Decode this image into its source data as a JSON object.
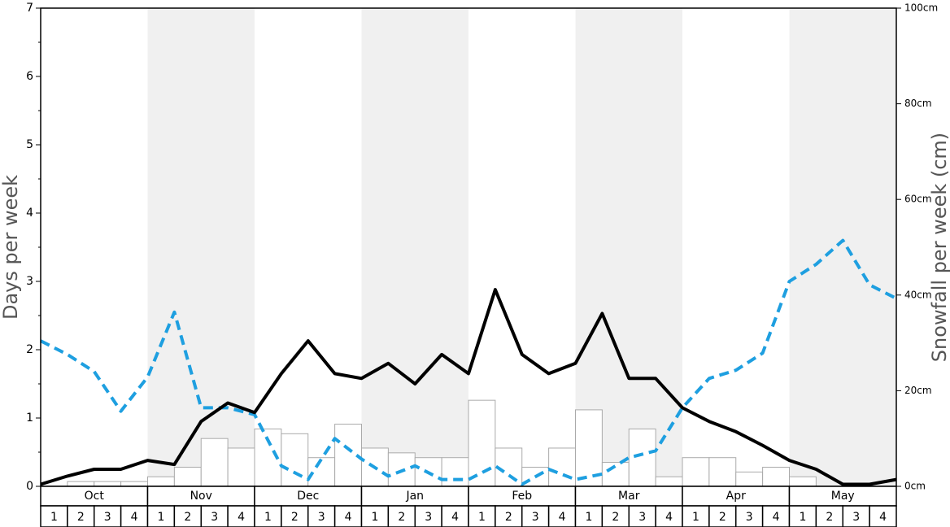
{
  "chart_data": {
    "type": "bar-line",
    "y_label": "Days per week",
    "y2_label": "Snowfall per week (cm)",
    "months": [
      "Oct",
      "Nov",
      "Dec",
      "Jan",
      "Feb",
      "Mar",
      "Apr",
      "May"
    ],
    "weeks": [
      "1",
      "2",
      "3",
      "4"
    ],
    "ylim": [
      0,
      7
    ],
    "yticks": [
      0,
      1,
      2,
      3,
      4,
      5,
      6,
      7
    ],
    "y2lim": [
      0,
      100
    ],
    "y2ticks": [
      {
        "value": 0,
        "label": "0cm"
      },
      {
        "value": 20,
        "label": "20cm"
      },
      {
        "value": 40,
        "label": "40cm"
      },
      {
        "value": 60,
        "label": "60cm"
      },
      {
        "value": 80,
        "label": "80cm"
      },
      {
        "value": 100,
        "label": "100cm"
      }
    ],
    "bars": {
      "axis": "y2",
      "color": "#ffffff",
      "values": [
        0,
        1,
        1,
        1,
        2,
        4,
        10,
        8,
        12,
        11,
        6,
        13,
        8,
        7,
        6,
        6,
        18,
        8,
        4,
        8,
        16,
        5,
        12,
        2,
        6,
        6,
        3,
        4,
        2,
        0,
        0,
        0
      ]
    },
    "series": [
      {
        "color": "#000000",
        "dashed": false,
        "values": [
          0.03,
          0.15,
          0.25,
          0.25,
          0.38,
          0.32,
          0.95,
          1.22,
          1.08,
          1.65,
          2.13,
          1.65,
          1.58,
          1.8,
          1.5,
          1.93,
          1.65,
          2.88,
          1.93,
          1.65,
          1.8,
          2.53,
          1.58,
          1.58,
          1.15,
          0.95,
          0.8,
          0.6,
          0.38,
          0.25,
          0.03,
          0.03,
          0.1
        ]
      },
      {
        "color": "#1e9fe0",
        "dashed": true,
        "values": [
          2.13,
          1.93,
          1.68,
          1.1,
          1.6,
          2.55,
          1.15,
          1.15,
          1.05,
          0.3,
          0.1,
          0.7,
          0.4,
          0.15,
          0.3,
          0.1,
          0.1,
          0.3,
          0.03,
          0.25,
          0.1,
          0.18,
          0.42,
          0.52,
          1.15,
          1.58,
          1.7,
          1.95,
          3.0,
          3.25,
          3.6,
          2.95,
          2.75
        ]
      }
    ]
  }
}
